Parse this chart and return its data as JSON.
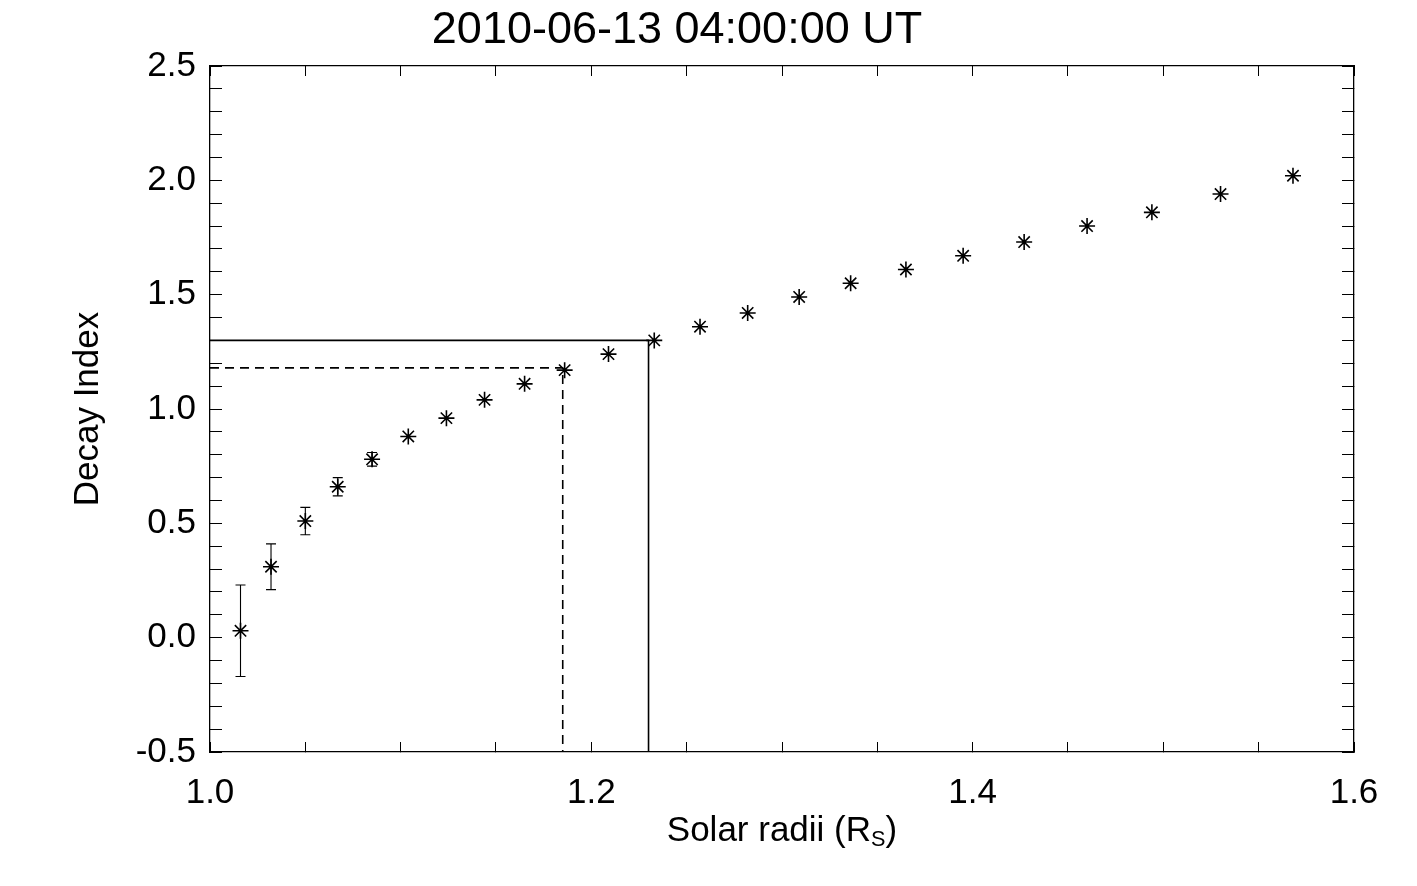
{
  "chart_data": {
    "type": "scatter",
    "title": "2010-06-13 04:00:00 UT",
    "xlabel": "Solar radii (R$_{S}$)",
    "ylabel": "Decay Index",
    "xlim": [
      1.0,
      1.6
    ],
    "ylim": [
      -0.5,
      2.5
    ],
    "xticks": [
      {
        "value": 1,
        "label": "1.0"
      },
      {
        "value": 1.05,
        "label": null
      },
      {
        "value": 1.1,
        "label": null
      },
      {
        "value": 1.15,
        "label": null
      },
      1.2,
      {
        "value": 1.25,
        "label": null
      },
      {
        "value": 1.3,
        "label": null
      },
      {
        "value": 1.35,
        "label": null
      },
      1.4,
      {
        "value": 1.45,
        "label": null
      },
      {
        "value": 1.5,
        "label": null
      },
      {
        "value": 1.55,
        "label": null
      },
      1.6
    ],
    "yticks": [
      -0.5,
      {
        "value": -0.4,
        "label": null
      },
      {
        "value": -0.3,
        "label": null
      },
      {
        "value": -0.2,
        "label": null
      },
      {
        "value": -0.1,
        "label": null
      },
      {
        "value": 0,
        "label": "0.0"
      },
      {
        "value": 0.1,
        "label": null
      },
      {
        "value": 0.2,
        "label": null
      },
      {
        "value": 0.3,
        "label": null
      },
      {
        "value": 0.4,
        "label": null
      },
      0.5,
      {
        "value": 0.6,
        "label": null
      },
      {
        "value": 0.7,
        "label": null
      },
      {
        "value": 0.8,
        "label": null
      },
      {
        "value": 0.9,
        "label": null
      },
      {
        "value": 1,
        "label": "1.0"
      },
      {
        "value": 1.1,
        "label": null
      },
      {
        "value": 1.2,
        "label": null
      },
      {
        "value": 1.3,
        "label": null
      },
      {
        "value": 1.4,
        "label": null
      },
      1.5,
      {
        "value": 1.6,
        "label": null
      },
      {
        "value": 1.7,
        "label": null
      },
      {
        "value": 1.8,
        "label": null
      },
      {
        "value": 1.9,
        "label": null
      },
      {
        "value": 2,
        "label": "2.0"
      },
      {
        "value": 2.1,
        "label": null
      },
      {
        "value": 2.2,
        "label": null
      },
      {
        "value": 2.3,
        "label": null
      },
      {
        "value": 2.4,
        "label": null
      },
      2.5
    ],
    "series": [
      {
        "type": "scatter",
        "color": "#000000",
        "marker": "cross",
        "x": [
          1.016,
          1.032,
          1.05,
          1.067,
          1.085,
          1.104,
          1.124,
          1.144,
          1.165,
          1.186,
          1.209,
          1.233,
          1.257,
          1.282,
          1.309,
          1.336,
          1.365,
          1.395,
          1.427,
          1.46,
          1.494,
          1.53,
          1.568
        ],
        "values": [
          0.03,
          0.31,
          0.51,
          0.66,
          0.78,
          0.88,
          0.96,
          1.04,
          1.11,
          1.17,
          1.24,
          1.3,
          1.36,
          1.42,
          1.49,
          1.55,
          1.61,
          1.67,
          1.73,
          1.8,
          1.86,
          1.94,
          2.02
        ],
        "errors": [
          0.2,
          0.1,
          0.06,
          0.04,
          0.03,
          null,
          null,
          null,
          null,
          null,
          null,
          null,
          null,
          null,
          null,
          null,
          null,
          null,
          null,
          null,
          null,
          null,
          null
        ]
      },
      {
        "type": "line",
        "color": "#000000",
        "marker": "none",
        "line_style": "dashed",
        "x": [
          1.0,
          1.185,
          1.185
        ],
        "values": [
          1.18,
          1.18,
          -0.5
        ]
      },
      {
        "type": "line",
        "color": "#000000",
        "marker": "none",
        "line_style": "solid",
        "x": [
          1.0,
          1.23,
          1.23
        ],
        "values": [
          1.3,
          1.3,
          -0.5
        ]
      }
    ]
  }
}
